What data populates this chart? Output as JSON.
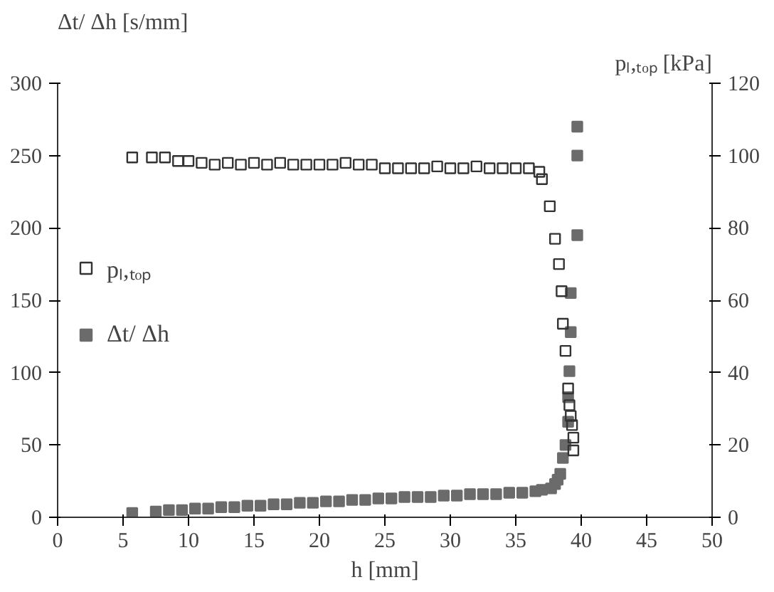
{
  "chart_data": {
    "type": "scatter",
    "xlabel": "h [mm]",
    "ylabel": "Δt/ Δh [s/mm]",
    "y2label": "pₗ,ₜₒₚ [kPa]",
    "xlim": [
      0,
      50
    ],
    "xticks": [
      0,
      5,
      10,
      15,
      20,
      25,
      30,
      35,
      40,
      45,
      50
    ],
    "ylim": [
      0,
      300
    ],
    "yticks": [
      0,
      50,
      100,
      150,
      200,
      250,
      300
    ],
    "y2lim": [
      0,
      120
    ],
    "y2ticks": [
      0,
      20,
      40,
      60,
      80,
      100,
      120
    ],
    "grid": false,
    "legend": "left",
    "marker": "square",
    "series": [
      {
        "name": "pₗ,ₜₒₚ",
        "axis": "y2",
        "color": "#333333",
        "x": [
          5.7,
          7.2,
          8.2,
          9.2,
          10,
          11,
          12,
          13,
          14,
          15,
          16,
          17,
          18,
          19,
          20,
          21,
          22,
          23,
          24,
          25,
          26,
          27,
          28,
          29,
          30,
          31,
          32,
          33,
          34,
          35,
          36,
          36.8,
          37.0,
          37.6,
          38.0,
          38.3,
          38.5,
          38.6,
          38.8,
          39.0,
          39.1,
          39.2,
          39.3,
          39.4,
          39.4
        ],
        "values": [
          99.5,
          99.5,
          99.5,
          98.5,
          98.5,
          98,
          97.5,
          98,
          97.5,
          98,
          97.5,
          98,
          97.5,
          97.5,
          97.5,
          97.5,
          98,
          97.5,
          97.5,
          96.5,
          96.5,
          96.5,
          96.5,
          97,
          96.5,
          96.5,
          97,
          96.5,
          96.5,
          96.5,
          96.5,
          95.5,
          93.5,
          86,
          77,
          70,
          62.5,
          53.5,
          46,
          35.6,
          31,
          28,
          25.5,
          22,
          18.5
        ]
      },
      {
        "name": "Δt/ Δh",
        "color": "#6b6b6b",
        "x": [
          5.7,
          7.5,
          8.5,
          9.5,
          10.5,
          11.5,
          12.5,
          13.5,
          14.5,
          15.5,
          16.5,
          17.5,
          18.5,
          19.5,
          20.5,
          21.5,
          22.5,
          23.5,
          24.5,
          25.5,
          26.5,
          27.5,
          28.5,
          29.5,
          30.5,
          31.5,
          32.5,
          33.5,
          34.5,
          35.5,
          36.5,
          37,
          37.7,
          38,
          38.2,
          38.4,
          38.6,
          38.8,
          39,
          39,
          39.1,
          39.2,
          39.2,
          39.7,
          39.7,
          39.7
        ],
        "values": [
          3,
          4,
          5,
          5,
          6,
          6,
          7,
          7,
          8,
          8,
          9,
          9,
          10,
          10,
          11,
          11,
          12,
          12,
          13,
          13,
          14,
          14,
          14,
          15,
          15,
          16,
          16,
          16,
          17,
          17,
          18,
          19,
          20,
          23,
          26,
          30,
          41,
          50,
          66,
          83,
          101,
          128,
          155,
          195,
          250,
          270
        ]
      }
    ]
  }
}
